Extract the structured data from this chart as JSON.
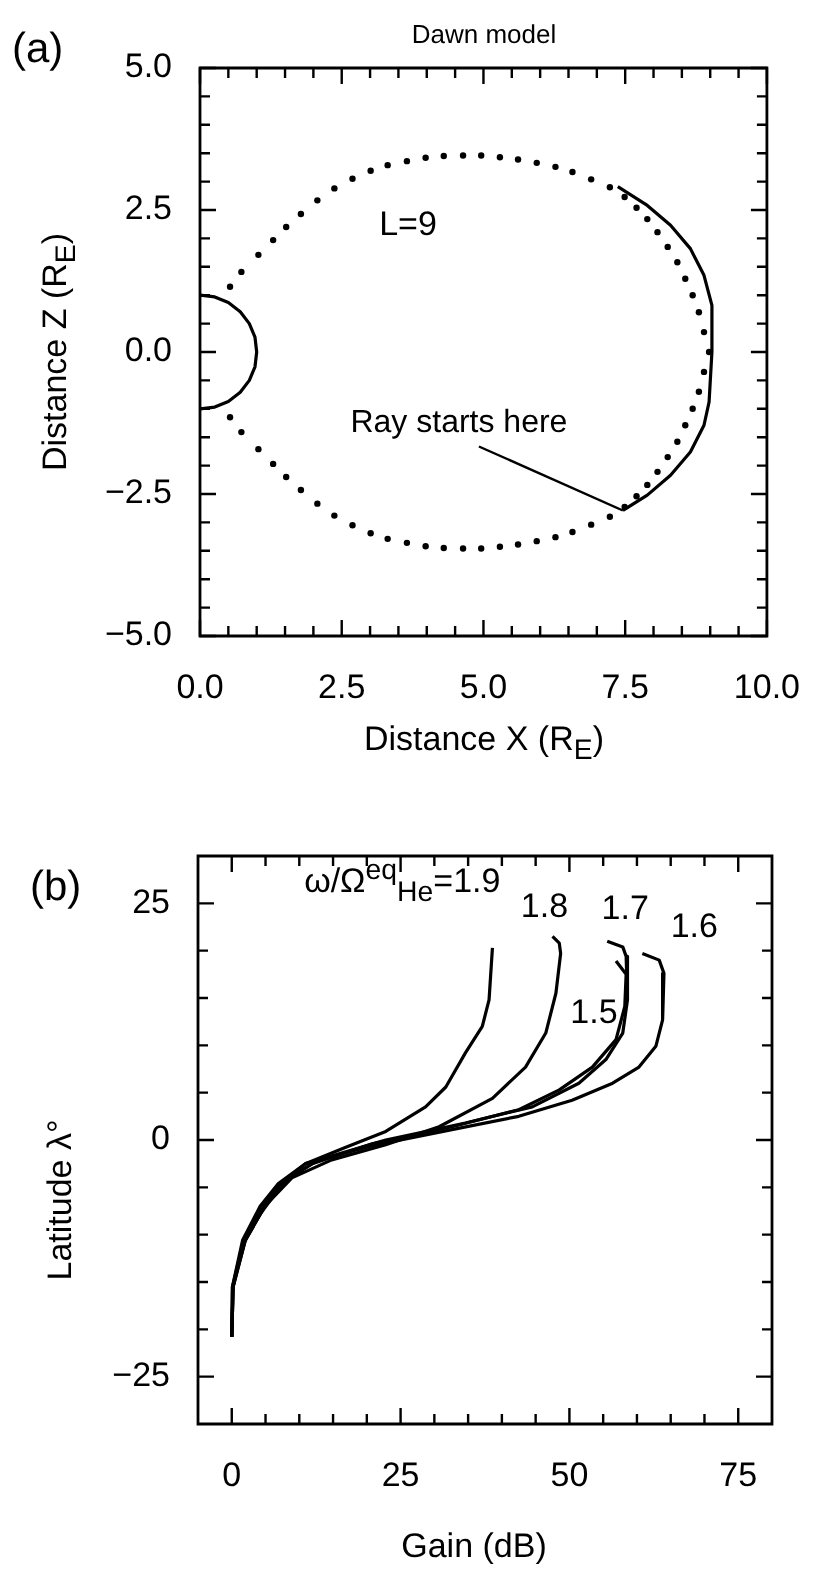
{
  "chart_data": [
    {
      "type": "line",
      "title": "Dawn model",
      "xlabel": "Distance  X (R$_{E}$)",
      "ylabel": "Distance  Z (R$_{E}$)",
      "xlim": [
        0,
        10
      ],
      "ylim": [
        -5,
        5
      ],
      "xticks": [
        {
          "value": 0,
          "label": "0.0"
        },
        {
          "value": 0.5,
          "label": null
        },
        {
          "value": 1,
          "label": null
        },
        {
          "value": 1.5,
          "label": null
        },
        {
          "value": 2,
          "label": null
        },
        {
          "value": 2.5,
          "label": "2.5"
        },
        {
          "value": 3,
          "label": null
        },
        {
          "value": 3.5,
          "label": null
        },
        {
          "value": 4,
          "label": null
        },
        {
          "value": 4.5,
          "label": null
        },
        {
          "value": 5,
          "label": "5.0"
        },
        {
          "value": 5.5,
          "label": null
        },
        {
          "value": 6,
          "label": null
        },
        {
          "value": 6.5,
          "label": null
        },
        {
          "value": 7,
          "label": null
        },
        {
          "value": 7.5,
          "label": "7.5"
        },
        {
          "value": 8,
          "label": null
        },
        {
          "value": 8.5,
          "label": null
        },
        {
          "value": 9,
          "label": null
        },
        {
          "value": 9.5,
          "label": null
        },
        {
          "value": 10,
          "label": "10.0"
        }
      ],
      "yticks": [
        {
          "value": -5,
          "label": "−5.0"
        },
        {
          "value": -4.5,
          "label": null
        },
        {
          "value": -4,
          "label": null
        },
        {
          "value": -3.5,
          "label": null
        },
        {
          "value": -3,
          "label": null
        },
        {
          "value": -2.5,
          "label": "−2.5"
        },
        {
          "value": -2,
          "label": null
        },
        {
          "value": -1.5,
          "label": null
        },
        {
          "value": -1,
          "label": null
        },
        {
          "value": -0.5,
          "label": null
        },
        {
          "value": 0,
          "label": "0.0"
        },
        {
          "value": 0.5,
          "label": null
        },
        {
          "value": 1,
          "label": null
        },
        {
          "value": 1.5,
          "label": null
        },
        {
          "value": 2,
          "label": null
        },
        {
          "value": 2.5,
          "label": "2.5"
        },
        {
          "value": 3,
          "label": null
        },
        {
          "value": 3.5,
          "label": null
        },
        {
          "value": 4,
          "label": null
        },
        {
          "value": 4.5,
          "label": null
        },
        {
          "value": 5,
          "label": "5.0"
        }
      ],
      "series": [
        {
          "name": "L=9",
          "type": "scatter",
          "marker": "circle",
          "color": "#000000",
          "x": [
            0.53,
            0.73,
            1.03,
            1.29,
            1.52,
            1.78,
            2.07,
            2.37,
            2.69,
            3.01,
            3.31,
            3.65,
            3.98,
            4.3,
            4.64,
            4.96,
            5.29,
            5.61,
            5.94,
            6.27,
            6.57,
            6.9,
            7.23,
            7.49,
            7.7,
            7.89,
            8.07,
            8.25,
            8.42,
            8.56,
            8.69,
            8.8,
            8.89,
            8.98,
            8.89,
            8.8,
            8.69,
            8.56,
            8.42,
            8.25,
            8.07,
            7.89,
            7.7,
            7.49,
            7.23,
            6.9,
            6.57,
            6.27,
            5.94,
            5.61,
            5.29,
            4.96,
            4.64,
            4.3,
            3.98,
            3.65,
            3.31,
            3.01,
            2.69,
            2.37,
            2.07,
            1.78,
            1.52,
            1.29,
            1.03,
            0.73,
            0.53
          ],
          "values": [
            1.15,
            1.41,
            1.71,
            1.97,
            2.2,
            2.43,
            2.67,
            2.88,
            3.05,
            3.19,
            3.29,
            3.36,
            3.42,
            3.45,
            3.46,
            3.46,
            3.43,
            3.39,
            3.33,
            3.26,
            3.17,
            3.04,
            2.9,
            2.73,
            2.54,
            2.34,
            2.11,
            1.85,
            1.58,
            1.29,
            1.0,
            0.7,
            0.35,
            0,
            -0.35,
            -0.7,
            -1.0,
            -1.29,
            -1.58,
            -1.85,
            -2.11,
            -2.34,
            -2.54,
            -2.73,
            -2.9,
            -3.04,
            -3.17,
            -3.26,
            -3.33,
            -3.39,
            -3.43,
            -3.46,
            -3.46,
            -3.45,
            -3.42,
            -3.36,
            -3.29,
            -3.19,
            -3.05,
            -2.88,
            -2.67,
            -2.43,
            -2.2,
            -1.97,
            -1.71,
            -1.41,
            -1.15
          ]
        },
        {
          "marker": "none",
          "color": "#000000",
          "x": [
            0,
            0.26,
            0.5,
            0.71,
            0.87,
            0.97,
            1,
            0.97,
            0.87,
            0.71,
            0.5,
            0.26,
            0
          ],
          "values": [
            1,
            0.97,
            0.87,
            0.71,
            0.5,
            0.26,
            0,
            -0.26,
            -0.5,
            -0.71,
            -0.87,
            -0.97,
            -1
          ]
        },
        {
          "marker": "none",
          "color": "#000000",
          "x": [
            7.46,
            7.89,
            8.3,
            8.65,
            8.89,
            8.98,
            9.03,
            9.03,
            8.89,
            8.65,
            8.3,
            7.89,
            7.37
          ],
          "values": [
            -2.79,
            -2.52,
            -2.17,
            -1.76,
            -1.29,
            -0.88,
            0,
            0.82,
            1.35,
            1.82,
            2.23,
            2.58,
            2.91
          ]
        }
      ],
      "annotations": [
        "(a)",
        {
          "text": "Ray starts here",
          "x": 7.46,
          "y": -2.79
        }
      ]
    },
    {
      "type": "line",
      "legend": "top",
      "xlabel": "Gain (dB)",
      "ylabel": "Latitude  λ°",
      "xlim": [
        -5,
        80
      ],
      "ylim": [
        -30,
        30
      ],
      "xticks": [
        0,
        {
          "value": 5,
          "label": null
        },
        {
          "value": 10,
          "label": null
        },
        {
          "value": 15,
          "label": null
        },
        {
          "value": 20,
          "label": null
        },
        25,
        {
          "value": 30,
          "label": null
        },
        {
          "value": 35,
          "label": null
        },
        {
          "value": 40,
          "label": null
        },
        {
          "value": 45,
          "label": null
        },
        50,
        {
          "value": 55,
          "label": null
        },
        {
          "value": 60,
          "label": null
        },
        {
          "value": 65,
          "label": null
        },
        {
          "value": 70,
          "label": null
        },
        75
      ],
      "yticks": [
        {
          "value": -25,
          "label": "−25"
        },
        {
          "value": -20,
          "label": null
        },
        {
          "value": -15,
          "label": null
        },
        {
          "value": -10,
          "label": null
        },
        {
          "value": -5,
          "label": null
        },
        0,
        {
          "value": 5,
          "label": null
        },
        {
          "value": 10,
          "label": null
        },
        {
          "value": 15,
          "label": null
        },
        {
          "value": 20,
          "label": null
        },
        25
      ],
      "series": [
        {
          "name": "ω/Ω$^{eq}$$_{He}$=1.9",
          "marker": "none",
          "color": "#000000",
          "x": [
            38.6,
            38.1,
            37.1,
            34.6,
            31.7,
            28.7,
            22.8,
            16.8,
            10.9,
            7.9,
            5.9,
            3.5,
            1.5,
            0.2,
            0
          ],
          "values": [
            20.3,
            14.8,
            12,
            9.2,
            5.6,
            3.5,
            0.9,
            -0.8,
            -2.5,
            -4.2,
            -6.2,
            -8.5,
            -11.3,
            -15.5,
            -20.8
          ]
        },
        {
          "name": "1.8",
          "marker": "none",
          "color": "#000000",
          "x": [
            47.5,
            48.5,
            48.7,
            48,
            46.5,
            43.5,
            38.6,
            30.7,
            22.8,
            14.8,
            8.9,
            4.9,
            2,
            0.2,
            0
          ],
          "values": [
            21.5,
            20.8,
            19.7,
            15.5,
            11.3,
            7.7,
            4.4,
            1.4,
            -0.5,
            -2.1,
            -4,
            -7,
            -10.6,
            -15.5,
            -20.8
          ]
        },
        {
          "name": "1.7",
          "marker": "none",
          "color": "#000000",
          "x": [
            55.6,
            57.9,
            58.4,
            58.6,
            57.9,
            55.4,
            51.4,
            44.5,
            34.6,
            22.8,
            12.9,
            7.9,
            4.9,
            2,
            0.2,
            0
          ],
          "values": [
            21,
            20.4,
            19.4,
            14.8,
            11.3,
            8.5,
            6,
            3.5,
            1.8,
            0,
            -2.1,
            -4.2,
            -7,
            -10.6,
            -15.5,
            -20.8
          ]
        },
        {
          "name": "1.6",
          "marker": "none",
          "color": "#000000",
          "x": [
            60.8,
            63.3,
            64,
            63.8,
            62.8,
            60.3,
            56.4,
            50.4,
            42.5,
            32.6,
            20.8,
            10.9,
            6.9,
            4.2,
            1.6,
            0.1,
            0
          ],
          "values": [
            19.7,
            19,
            17.6,
            12.7,
            9.9,
            7.7,
            6,
            4.2,
            2.5,
            1.1,
            -0.6,
            -2.5,
            -4.6,
            -7,
            -10.6,
            -15.5,
            -20.8
          ]
        },
        {
          "name": "1.5",
          "marker": "none",
          "color": "#000000",
          "x": [
            56.9,
            58.4,
            58.2,
            56.9,
            53.4,
            48.5,
            42.5,
            32.6,
            20.8,
            11.9,
            7.4,
            4.5,
            1.8,
            0.1,
            0
          ],
          "values": [
            18.9,
            17.5,
            14.1,
            10.6,
            7.7,
            5.3,
            3.2,
            1.4,
            -0.4,
            -2.5,
            -4.6,
            -7,
            -10.6,
            -15.5,
            -20.8
          ]
        }
      ],
      "annotations": [
        "(b)"
      ]
    }
  ]
}
